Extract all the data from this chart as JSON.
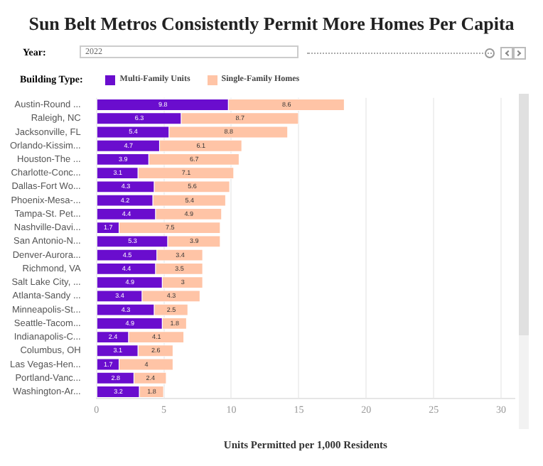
{
  "chart_data": {
    "type": "bar",
    "orientation": "horizontal",
    "stacked": true,
    "title": "Sun Belt Metros Consistently Permit More Homes Per Capita",
    "xlabel": "Units Permitted per 1,000 Residents",
    "legend_title": "Building Type:",
    "legend": "top left",
    "grid": "x",
    "data_labels": true,
    "annotations": [
      "Year:",
      "2022"
    ],
    "categories": [
      "Austin-Round ...",
      "Raleigh, NC",
      "Jacksonville, FL",
      "Orlando-Kissim...",
      "Houston-The ...",
      "Charlotte-Conc...",
      "Dallas-Fort Wo...",
      "Phoenix-Mesa-...",
      "Tampa-St. Pet...",
      "Nashville-Davi...",
      "San Antonio-N...",
      "Denver-Aurora...",
      "Richmond, VA",
      "Salt Lake City, ...",
      "Atlanta-Sandy ...",
      "Minneapolis-St...",
      "Seattle-Tacom...",
      "Indianapolis-C...",
      "Columbus, OH",
      "Las Vegas-Hen...",
      "Portland-Vanc...",
      "Washington-Ar..."
    ],
    "xlim": [
      0,
      31
    ],
    "xticks": [
      0,
      5,
      10,
      15,
      20,
      25,
      30
    ],
    "series": [
      {
        "name": "Multi-Family Units",
        "color": "#6a0dce",
        "values": [
          9.8,
          6.3,
          5.4,
          4.7,
          3.9,
          3.1,
          4.3,
          4.2,
          4.4,
          1.7,
          5.3,
          4.5,
          4.4,
          4.9,
          3.4,
          4.3,
          4.9,
          2.4,
          3.1,
          1.7,
          2.8,
          3.2
        ]
      },
      {
        "name": "Single-Family Homes",
        "color": "#ffc4a6",
        "values": [
          8.6,
          8.7,
          8.8,
          6.1,
          6.7,
          7.1,
          5.6,
          5.4,
          4.9,
          7.5,
          3.9,
          3.4,
          3.5,
          3.0,
          4.3,
          2.5,
          1.8,
          4.1,
          2.6,
          4.0,
          2.4,
          1.8
        ]
      }
    ]
  }
}
